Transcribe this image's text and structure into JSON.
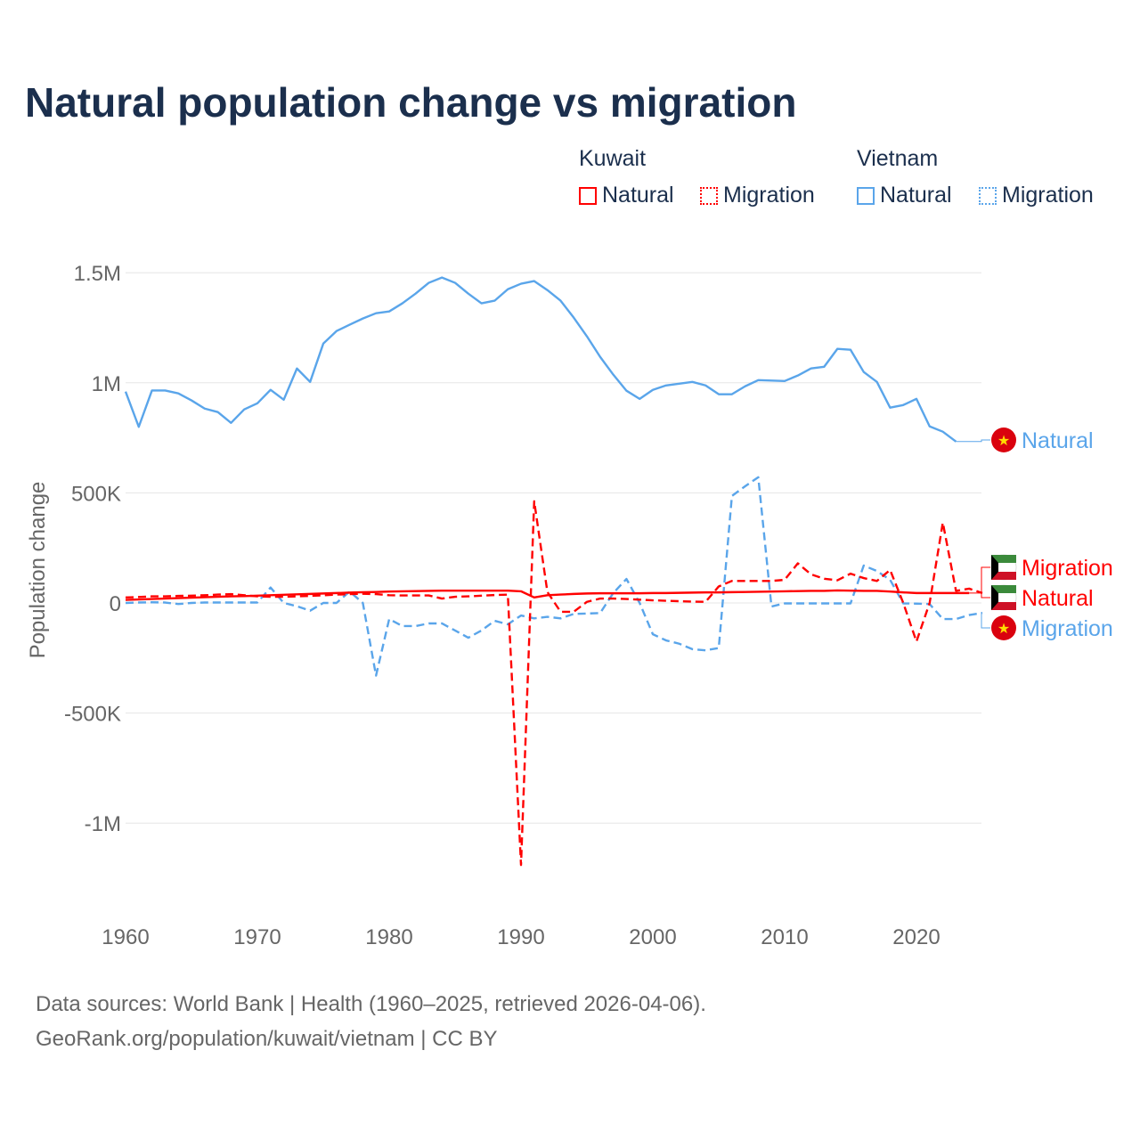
{
  "title": "Natural population change vs migration",
  "legend": {
    "groups": [
      {
        "name": "Kuwait",
        "items": [
          "Natural",
          "Migration"
        ],
        "color": "#ff0000"
      },
      {
        "name": "Vietnam",
        "items": [
          "Natural",
          "Migration"
        ],
        "color": "#5aa5ea"
      }
    ]
  },
  "source": [
    "Data sources: World Bank | Health (1960–2025, retrieved 2026-04-06).",
    "GeoRank.org/population/kuwait/vietnam | CC BY"
  ],
  "chart_data": {
    "type": "line",
    "title": "Natural population change vs migration",
    "xlabel": "",
    "ylabel": "Population change",
    "xlim": [
      1960,
      2025
    ],
    "ylim": [
      -1250000,
      1600000
    ],
    "x_ticks": [
      1960,
      1970,
      1980,
      1990,
      2000,
      2010,
      2020
    ],
    "x_tick_labels": [
      "1960",
      "1970",
      "1980",
      "1990",
      "2000",
      "2010",
      "2020"
    ],
    "y_ticks": [
      -1000000,
      -500000,
      0,
      500000,
      1000000,
      1500000
    ],
    "y_tick_labels": [
      "-1M",
      "-500K",
      "0",
      "500K",
      "1M",
      "1.5M"
    ],
    "grid": true,
    "series": [
      {
        "name": "Vietnam Natural",
        "country": "Vietnam",
        "kind": "Natural",
        "color": "#5aa5ea",
        "dash": false,
        "start": 1960,
        "values": [
          960000,
          800000,
          965000,
          965000,
          952000,
          920000,
          883000,
          867000,
          818000,
          879000,
          907000,
          968000,
          923000,
          1065000,
          1004000,
          1178000,
          1235000,
          1264000,
          1292000,
          1316000,
          1324000,
          1361000,
          1405000,
          1454000,
          1478000,
          1454000,
          1405000,
          1361000,
          1373000,
          1425000,
          1450000,
          1462000,
          1421000,
          1373000,
          1296000,
          1211000,
          1118000,
          1037000,
          964000,
          927000,
          968000,
          988000,
          996000,
          1004000,
          988000,
          948000,
          948000,
          984000,
          1012000,
          1010000,
          1008000,
          1033000,
          1065000,
          1073000,
          1154000,
          1150000,
          1049000,
          1004000,
          887000,
          899000,
          927000,
          802000,
          778000,
          733000
        ]
      },
      {
        "name": "Vietnam Migration",
        "country": "Vietnam",
        "kind": "Migration",
        "color": "#5aa5ea",
        "dash": true,
        "start": 1960,
        "values": [
          0,
          2000,
          3000,
          2000,
          -5000,
          0,
          2000,
          2000,
          2000,
          2000,
          2000,
          70000,
          0,
          -15000,
          -35000,
          0,
          0,
          52000,
          0,
          -330000,
          -73000,
          -105000,
          -105000,
          -93000,
          -93000,
          -125000,
          -158000,
          -125000,
          -81000,
          -97000,
          -57000,
          -70000,
          -63000,
          -70000,
          -50000,
          -48000,
          -46000,
          45000,
          109000,
          0,
          -142000,
          -170000,
          -185000,
          -210000,
          -215000,
          -205000,
          486000,
          530000,
          571000,
          -16000,
          -2000,
          -2000,
          -2000,
          -2000,
          -2000,
          -2000,
          170000,
          145000,
          105000,
          -2000,
          -3000,
          -5000,
          -73000,
          -73000,
          -55000,
          -45000
        ]
      },
      {
        "name": "Kuwait Natural",
        "country": "Kuwait",
        "kind": "Natural",
        "color": "#ff0000",
        "dash": false,
        "start": 1960,
        "values": [
          14000,
          16000,
          18000,
          20000,
          22000,
          24000,
          26000,
          28000,
          30000,
          31000,
          33000,
          35000,
          37000,
          39000,
          41000,
          43000,
          45000,
          47000,
          49000,
          50000,
          52000,
          53000,
          54000,
          55000,
          56000,
          56000,
          56000,
          56000,
          56000,
          56000,
          53000,
          25000,
          35000,
          38000,
          41000,
          43000,
          44000,
          44000,
          44000,
          44000,
          45000,
          45000,
          46000,
          47000,
          48000,
          48000,
          49000,
          50000,
          51000,
          52000,
          53000,
          54000,
          55000,
          55000,
          57000,
          56000,
          55000,
          55000,
          52000,
          48000,
          45000,
          45000,
          45000,
          45000,
          45000
        ]
      },
      {
        "name": "Kuwait Migration",
        "country": "Kuwait",
        "kind": "Migration",
        "color": "#ff0000",
        "dash": true,
        "start": 1960,
        "values": [
          25000,
          27000,
          30000,
          30000,
          32000,
          33000,
          35000,
          38000,
          40000,
          35000,
          30000,
          28000,
          28000,
          30000,
          32000,
          35000,
          38000,
          40000,
          42000,
          40000,
          35000,
          34000,
          34000,
          34000,
          20000,
          28000,
          30000,
          33000,
          36000,
          38000,
          -1190000,
          462000,
          50000,
          -40000,
          -40000,
          5000,
          20000,
          20000,
          18000,
          15000,
          12000,
          10000,
          8000,
          6000,
          5000,
          75000,
          100000,
          100000,
          100000,
          100000,
          105000,
          180000,
          130000,
          110000,
          103000,
          133000,
          113000,
          100000,
          150000,
          0,
          -175000,
          0,
          365000,
          55000,
          65000,
          45000
        ]
      }
    ],
    "end_labels": [
      {
        "text": "Natural",
        "series": "Vietnam Natural"
      },
      {
        "text": "Migration",
        "series": "Kuwait Migration"
      },
      {
        "text": "Natural",
        "series": "Kuwait Natural"
      },
      {
        "text": "Migration",
        "series": "Vietnam Migration"
      }
    ]
  }
}
